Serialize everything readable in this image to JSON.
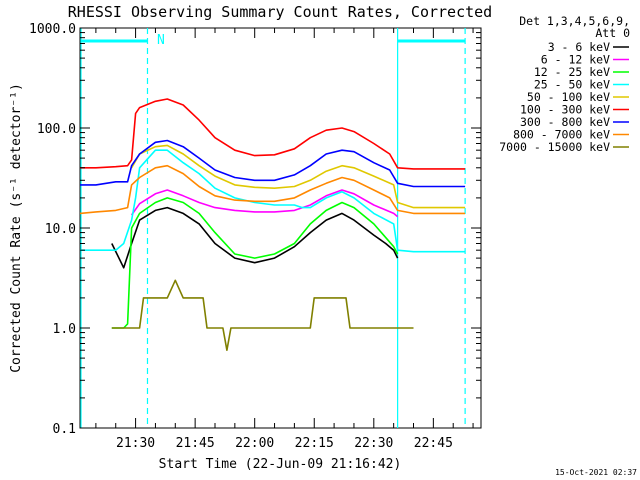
{
  "chart_data": {
    "type": "line",
    "title": "RHESSI Observing Summary Count Rates, Corrected",
    "xlabel": "Start Time (22-Jun-09 21:16:42)",
    "ylabel": "Corrected Count Rate (s⁻¹ detector⁻¹)",
    "yscale": "log",
    "ylim": [
      0.1,
      1000.0
    ],
    "y_ticks": [
      "0.1",
      "1.0",
      "10.0",
      "100.0",
      "1000.0"
    ],
    "xlim": [
      "21:16",
      "22:57"
    ],
    "x_ticks": [
      "21:30",
      "21:45",
      "22:00",
      "22:15",
      "22:30",
      "22:45"
    ],
    "grid": false,
    "legend_position": "top-right",
    "legend_header": [
      "Det 1,3,4,5,6,9,",
      "Att 0"
    ],
    "flag_label": "N",
    "timestamp": "15-Oct-2021 02:37",
    "markers": {
      "solid_lines": [
        "21:16",
        "22:36"
      ],
      "dashed_lines": [
        "21:33",
        "22:53"
      ],
      "flag_bars": [
        [
          "21:16",
          "21:33"
        ],
        [
          "22:36",
          "22:53"
        ]
      ]
    },
    "series": [
      {
        "name": "3 - 6 keV",
        "color": "#000000",
        "points": [
          [
            "21:24",
            7
          ],
          [
            "21:27",
            4
          ],
          [
            "21:29",
            7
          ],
          [
            "21:31",
            12
          ],
          [
            "21:35",
            15
          ],
          [
            "21:38",
            16
          ],
          [
            "21:42",
            14
          ],
          [
            "21:46",
            11
          ],
          [
            "21:50",
            7
          ],
          [
            "21:55",
            5
          ],
          [
            "22:00",
            4.5
          ],
          [
            "22:05",
            5
          ],
          [
            "22:10",
            6.5
          ],
          [
            "22:14",
            9
          ],
          [
            "22:18",
            12
          ],
          [
            "22:22",
            14
          ],
          [
            "22:25",
            12
          ],
          [
            "22:30",
            8.5
          ],
          [
            "22:33",
            7
          ],
          [
            "22:35",
            6
          ],
          [
            "22:36",
            5
          ]
        ]
      },
      {
        "name": "6 - 12 keV",
        "color": "#ff00ff",
        "points": [
          [
            "21:29",
            13.5
          ],
          [
            "21:31",
            17.5
          ],
          [
            "21:35",
            22
          ],
          [
            "21:38",
            24
          ],
          [
            "21:42",
            21
          ],
          [
            "21:46",
            18
          ],
          [
            "21:50",
            16
          ],
          [
            "21:55",
            15
          ],
          [
            "22:00",
            14.5
          ],
          [
            "22:05",
            14.5
          ],
          [
            "22:10",
            15
          ],
          [
            "22:14",
            17
          ],
          [
            "22:18",
            21
          ],
          [
            "22:22",
            24
          ],
          [
            "22:25",
            22
          ],
          [
            "22:30",
            17
          ],
          [
            "22:35",
            14
          ],
          [
            "22:36",
            13
          ]
        ]
      },
      {
        "name": "12 - 25 keV",
        "color": "#00ff00",
        "points": [
          [
            "21:24",
            1
          ],
          [
            "21:27",
            1
          ],
          [
            "21:28",
            1.1
          ],
          [
            "21:29",
            10
          ],
          [
            "21:31",
            14
          ],
          [
            "21:35",
            18
          ],
          [
            "21:38",
            20
          ],
          [
            "21:42",
            18
          ],
          [
            "21:46",
            14
          ],
          [
            "21:50",
            9
          ],
          [
            "21:55",
            5.5
          ],
          [
            "22:00",
            5
          ],
          [
            "22:05",
            5.5
          ],
          [
            "22:10",
            7
          ],
          [
            "22:14",
            11
          ],
          [
            "22:18",
            15
          ],
          [
            "22:22",
            18
          ],
          [
            "22:25",
            16
          ],
          [
            "22:30",
            11
          ],
          [
            "22:35",
            6.5
          ],
          [
            "22:36",
            5.5
          ]
        ]
      },
      {
        "name": "25 - 50 keV",
        "color": "#00ffff",
        "points": [
          [
            "21:16",
            6
          ],
          [
            "21:20",
            6
          ],
          [
            "21:25",
            6
          ],
          [
            "21:27",
            7
          ],
          [
            "21:29",
            12
          ],
          [
            "21:30",
            20
          ],
          [
            "21:31",
            40
          ],
          [
            "21:35",
            60
          ],
          [
            "21:38",
            60
          ],
          [
            "21:42",
            45
          ],
          [
            "21:46",
            35
          ],
          [
            "21:50",
            25
          ],
          [
            "21:55",
            20
          ],
          [
            "22:00",
            18
          ],
          [
            "22:05",
            17
          ],
          [
            "22:10",
            17
          ],
          [
            "22:12",
            16
          ],
          [
            "22:14",
            16
          ],
          [
            "22:18",
            20
          ],
          [
            "22:22",
            23
          ],
          [
            "22:25",
            20
          ],
          [
            "22:30",
            14
          ],
          [
            "22:35",
            11
          ],
          [
            "22:36",
            6
          ],
          [
            "22:40",
            5.8
          ],
          [
            "22:45",
            5.8
          ],
          [
            "22:53",
            5.8
          ]
        ]
      },
      {
        "name": "50 - 100 keV",
        "color": "#e0c800",
        "points": [
          [
            "21:29",
            40
          ],
          [
            "21:31",
            55
          ],
          [
            "21:35",
            65
          ],
          [
            "21:38",
            67
          ],
          [
            "21:42",
            55
          ],
          [
            "21:46",
            42
          ],
          [
            "21:50",
            33
          ],
          [
            "21:55",
            27
          ],
          [
            "22:00",
            25.5
          ],
          [
            "22:05",
            25
          ],
          [
            "22:10",
            26
          ],
          [
            "22:14",
            30
          ],
          [
            "22:18",
            37
          ],
          [
            "22:22",
            42
          ],
          [
            "22:25",
            40
          ],
          [
            "22:30",
            33
          ],
          [
            "22:35",
            27
          ],
          [
            "22:36",
            18
          ],
          [
            "22:40",
            16
          ],
          [
            "22:45",
            16
          ],
          [
            "22:53",
            16
          ]
        ]
      },
      {
        "name": "100 - 300 keV",
        "color": "#ff0000",
        "points": [
          [
            "21:16",
            40
          ],
          [
            "21:20",
            40
          ],
          [
            "21:25",
            41
          ],
          [
            "21:28",
            42
          ],
          [
            "21:29",
            48
          ],
          [
            "21:30",
            140
          ],
          [
            "21:31",
            160
          ],
          [
            "21:35",
            185
          ],
          [
            "21:38",
            195
          ],
          [
            "21:42",
            170
          ],
          [
            "21:46",
            120
          ],
          [
            "21:50",
            80
          ],
          [
            "21:55",
            60
          ],
          [
            "22:00",
            53
          ],
          [
            "22:05",
            54
          ],
          [
            "22:10",
            62
          ],
          [
            "22:14",
            80
          ],
          [
            "22:18",
            95
          ],
          [
            "22:22",
            100
          ],
          [
            "22:25",
            92
          ],
          [
            "22:30",
            70
          ],
          [
            "22:34",
            55
          ],
          [
            "22:36",
            40
          ],
          [
            "22:40",
            39
          ],
          [
            "22:45",
            39
          ],
          [
            "22:53",
            39
          ]
        ]
      },
      {
        "name": "300 - 800 keV",
        "color": "#0000ff",
        "points": [
          [
            "21:16",
            27
          ],
          [
            "21:20",
            27
          ],
          [
            "21:25",
            29
          ],
          [
            "21:28",
            29
          ],
          [
            "21:29",
            42
          ],
          [
            "21:31",
            55
          ],
          [
            "21:35",
            72
          ],
          [
            "21:38",
            75
          ],
          [
            "21:42",
            65
          ],
          [
            "21:46",
            50
          ],
          [
            "21:50",
            38
          ],
          [
            "21:55",
            32
          ],
          [
            "22:00",
            30
          ],
          [
            "22:05",
            30
          ],
          [
            "22:10",
            34
          ],
          [
            "22:14",
            42
          ],
          [
            "22:18",
            55
          ],
          [
            "22:22",
            60
          ],
          [
            "22:25",
            58
          ],
          [
            "22:30",
            45
          ],
          [
            "22:34",
            38
          ],
          [
            "22:36",
            28
          ],
          [
            "22:40",
            26
          ],
          [
            "22:45",
            26
          ],
          [
            "22:53",
            26
          ]
        ]
      },
      {
        "name": "800 - 7000 keV",
        "color": "#ff8800",
        "points": [
          [
            "21:16",
            14
          ],
          [
            "21:20",
            14.5
          ],
          [
            "21:25",
            15
          ],
          [
            "21:28",
            16
          ],
          [
            "21:29",
            27
          ],
          [
            "21:31",
            32
          ],
          [
            "21:35",
            40
          ],
          [
            "21:38",
            42
          ],
          [
            "21:42",
            35
          ],
          [
            "21:46",
            26
          ],
          [
            "21:50",
            21
          ],
          [
            "21:55",
            19
          ],
          [
            "22:00",
            18.5
          ],
          [
            "22:05",
            18.5
          ],
          [
            "22:10",
            20
          ],
          [
            "22:14",
            24
          ],
          [
            "22:18",
            28
          ],
          [
            "22:22",
            32
          ],
          [
            "22:25",
            30
          ],
          [
            "22:30",
            24
          ],
          [
            "22:34",
            20
          ],
          [
            "22:36",
            15
          ],
          [
            "22:40",
            14
          ],
          [
            "22:45",
            14
          ],
          [
            "22:53",
            14
          ]
        ]
      },
      {
        "name": "7000 - 15000 keV",
        "color": "#808000",
        "points": [
          [
            "21:24",
            1
          ],
          [
            "21:27",
            1
          ],
          [
            "21:29",
            1
          ],
          [
            "21:31",
            1
          ],
          [
            "21:32",
            2
          ],
          [
            "21:35",
            2
          ],
          [
            "21:38",
            2
          ],
          [
            "21:40",
            3
          ],
          [
            "21:42",
            2
          ],
          [
            "21:45",
            2
          ],
          [
            "21:47",
            2
          ],
          [
            "21:48",
            1
          ],
          [
            "21:52",
            1
          ],
          [
            "21:53",
            0.6
          ],
          [
            "21:54",
            1
          ],
          [
            "22:05",
            1
          ],
          [
            "22:10",
            1
          ],
          [
            "22:14",
            1
          ],
          [
            "22:15",
            2
          ],
          [
            "22:20",
            2
          ],
          [
            "22:23",
            2
          ],
          [
            "22:24",
            1
          ],
          [
            "22:28",
            1
          ],
          [
            "22:35",
            1
          ],
          [
            "22:40",
            1
          ]
        ]
      }
    ]
  }
}
